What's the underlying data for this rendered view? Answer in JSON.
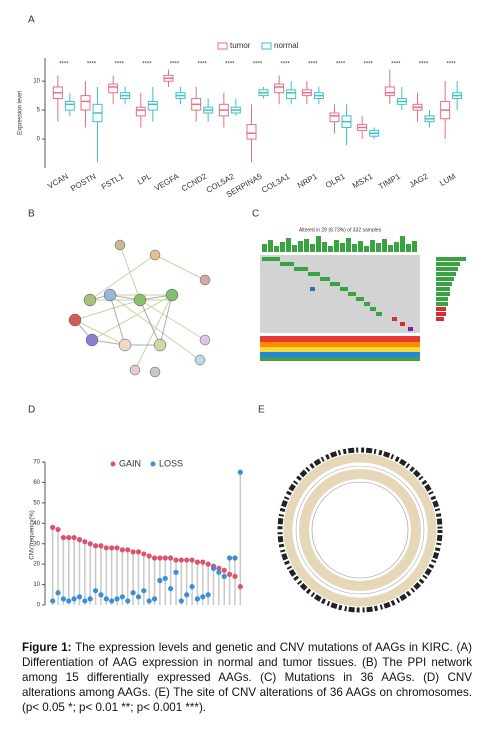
{
  "figure": {
    "panel_labels": [
      "A",
      "B",
      "C",
      "D",
      "E"
    ],
    "oncoplot_title": "Altered in 29 (8.73%) of 332 samples",
    "caption": {
      "label": "Figure 1:",
      "text": "The expression levels and genetic and CNV mutations of AAGs in KIRC. (A) Differentiation of AAG expression in normal and tumor tissues. (B) The PPI network among 15 differentially expressed AAGs. (C) Mutations in 36 AAGs. (D) CNV alterations among AAGs. (E) The site of CNV alterations of 36 AAGs on chromosomes. (p< 0.05 *; p< 0.01 **; p< 0.001 ***)."
    }
  },
  "chart_data": [
    {
      "type": "box",
      "ylabel": "Expression level",
      "ylim": [
        -5,
        14
      ],
      "yticks": [
        0,
        5,
        10
      ],
      "categories": [
        "VCAN",
        "POSTN",
        "FSTL1",
        "LPL",
        "VEGFA",
        "CCND2",
        "COL5A2",
        "SERPINA5",
        "COL3A1",
        "NRP1",
        "OLR1",
        "MSX1",
        "TIMP1",
        "JAG2",
        "LUM"
      ],
      "significance": [
        "****",
        "****",
        "****",
        "****",
        "****",
        "****",
        "****",
        "****",
        "****",
        "****",
        "****",
        "****",
        "****",
        "****",
        "****"
      ],
      "series": [
        {
          "name": "tumor",
          "color": "#e46f86",
          "min": [
            3,
            2,
            6,
            2,
            9,
            3,
            2,
            -4,
            6,
            6,
            1,
            0,
            6,
            3,
            0
          ],
          "q1": [
            7,
            5,
            8,
            4,
            10,
            5,
            4,
            0,
            8,
            7.5,
            3,
            1.5,
            7.5,
            5,
            3.5
          ],
          "median": [
            8,
            6.5,
            9,
            5,
            10.5,
            6,
            5,
            1,
            9,
            8,
            4,
            2,
            8,
            5.5,
            5
          ],
          "q3": [
            9,
            7.5,
            9.5,
            5.5,
            11,
            7,
            6,
            2.5,
            9.5,
            8.5,
            4.5,
            2.5,
            9,
            6,
            6.5
          ],
          "max": [
            11,
            10,
            11,
            8,
            12,
            9,
            8,
            6,
            11,
            10,
            6,
            4,
            12,
            8,
            10
          ]
        },
        {
          "name": "normal",
          "color": "#3ec2c6",
          "min": [
            4,
            -4,
            6,
            3,
            6,
            3,
            4,
            7,
            6,
            6,
            -1,
            0,
            5,
            2,
            5
          ],
          "q1": [
            5,
            3,
            7,
            5,
            7,
            4.5,
            4.5,
            7.5,
            7,
            7,
            2,
            0.5,
            6,
            3,
            7
          ],
          "median": [
            6,
            4.5,
            7.5,
            6,
            7.5,
            5,
            5,
            8,
            8,
            7.5,
            3,
            1,
            6.5,
            3.5,
            7.5
          ],
          "q3": [
            6.5,
            6,
            8,
            6.5,
            8,
            5.5,
            5.5,
            8.5,
            8.5,
            8,
            4,
            1.5,
            7,
            4,
            8
          ],
          "max": [
            8,
            9,
            9,
            9,
            9,
            7,
            7,
            9,
            10,
            9,
            6,
            2,
            9,
            5,
            10
          ]
        }
      ]
    },
    {
      "type": "lollipop",
      "ylabel": "CNV.frequency(%)",
      "ylim": [
        0,
        70
      ],
      "yticks": [
        0,
        10,
        20,
        30,
        40,
        50,
        60,
        70
      ],
      "categories": [
        null,
        null,
        null,
        null,
        null,
        null,
        null,
        null,
        null,
        null,
        null,
        null,
        null,
        null,
        null,
        null,
        null,
        null,
        null,
        null,
        null,
        null,
        null,
        null,
        null,
        null,
        null,
        null,
        null,
        null,
        null,
        null,
        null,
        null,
        null,
        null
      ],
      "series": [
        {
          "name": "GAIN",
          "color": "#d9546f",
          "values": [
            38,
            37,
            33,
            33,
            33,
            32,
            31,
            30,
            29,
            29,
            28,
            28,
            28,
            27,
            27,
            26,
            26,
            25,
            24,
            23,
            23,
            23,
            23,
            22,
            22,
            22,
            22,
            21,
            21,
            20,
            19,
            18,
            17,
            15,
            14,
            9
          ]
        },
        {
          "name": "LOSS",
          "color": "#3a8fd6",
          "values": [
            2,
            6,
            3,
            2,
            3,
            4,
            2,
            3,
            7,
            5,
            3,
            2,
            3,
            4,
            2,
            6,
            4,
            7,
            2,
            3,
            12,
            13,
            8,
            16,
            2,
            5,
            9,
            3,
            4,
            5,
            18,
            16,
            14,
            23,
            23,
            65
          ]
        }
      ]
    }
  ]
}
